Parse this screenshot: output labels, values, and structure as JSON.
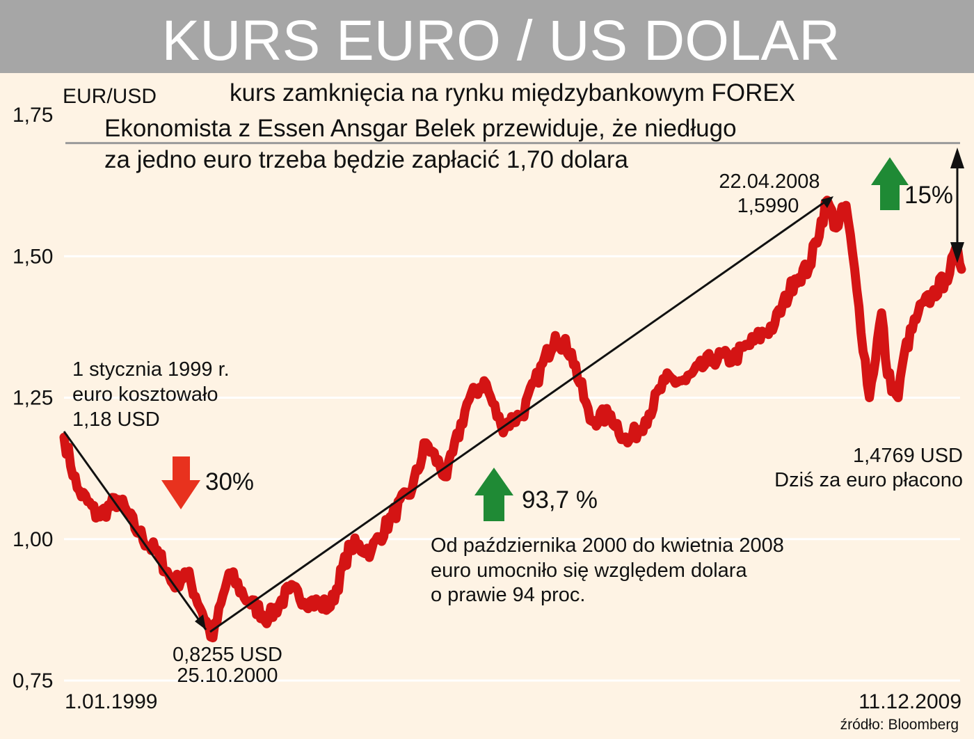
{
  "chart_data": {
    "type": "line",
    "title": "KURS EURO / US DOLAR",
    "ylabel": "EUR/USD",
    "subtitle": "kurs zamknięcia na rynku międzybankowym FOREX",
    "ylim": [
      0.75,
      1.75
    ],
    "y_ticks": [
      "1,75",
      "1,50",
      "1,25",
      "1,00",
      "0,75"
    ],
    "y_tick_values": [
      1.75,
      1.5,
      1.25,
      1.0,
      0.75
    ],
    "x_labels": {
      "start": "1.01.1999",
      "end": "11.12.2009"
    },
    "x_range": [
      "1999-01-01",
      "2009-12-11"
    ],
    "grid": true,
    "target_level": 1.7,
    "series": [
      {
        "color": "#d41414",
        "x": [
          "1999-01-01",
          "1999-03-01",
          "1999-06-01",
          "1999-09-01",
          "1999-12-01",
          "2000-03-01",
          "2000-05-01",
          "2000-07-01",
          "2000-10-25",
          "2001-01-05",
          "2001-04-01",
          "2001-07-01",
          "2001-10-01",
          "2002-01-01",
          "2002-04-01",
          "2002-07-01",
          "2002-10-01",
          "2003-01-01",
          "2003-04-01",
          "2003-06-01",
          "2003-09-01",
          "2003-12-01",
          "2004-02-15",
          "2004-05-01",
          "2004-08-01",
          "2004-12-28",
          "2005-03-10",
          "2005-06-01",
          "2005-09-01",
          "2005-11-15",
          "2006-02-01",
          "2006-05-01",
          "2006-08-01",
          "2006-12-01",
          "2007-03-01",
          "2007-06-01",
          "2007-09-01",
          "2007-12-01",
          "2008-02-01",
          "2008-04-22",
          "2008-06-01",
          "2008-07-15",
          "2008-09-01",
          "2008-10-27",
          "2008-12-20",
          "2009-01-15",
          "2009-03-04",
          "2009-04-01",
          "2009-06-01",
          "2009-08-01",
          "2009-10-01",
          "2009-11-25",
          "2009-12-11"
        ],
        "values": [
          1.18,
          1.09,
          1.04,
          1.07,
          1.01,
          0.97,
          0.92,
          0.94,
          0.8255,
          0.94,
          0.89,
          0.86,
          0.91,
          0.89,
          0.88,
          0.99,
          0.98,
          1.04,
          1.09,
          1.17,
          1.11,
          1.24,
          1.28,
          1.2,
          1.22,
          1.36,
          1.33,
          1.21,
          1.22,
          1.17,
          1.21,
          1.28,
          1.28,
          1.32,
          1.32,
          1.35,
          1.38,
          1.46,
          1.48,
          1.599,
          1.55,
          1.59,
          1.44,
          1.25,
          1.4,
          1.29,
          1.25,
          1.33,
          1.4,
          1.43,
          1.46,
          1.51,
          1.4769
        ]
      }
    ],
    "annotations": {
      "start_text": [
        "1 stycznia 1999 r.",
        "euro kosztowało",
        "1,18 USD"
      ],
      "low_text": [
        "0,8255 USD",
        "25.10.2000"
      ],
      "peak_text": [
        "22.04.2008",
        "1,5990"
      ],
      "today_text": [
        "1,4769 USD",
        "Dziś za euro płacono"
      ],
      "drop_pct": "30%",
      "rise_pct": "93,7 %",
      "gap_pct": "15%",
      "rise_text": [
        "Od października 2000 do kwietnia 2008",
        "euro umocniło się względem dolara",
        "o prawie 94 proc."
      ],
      "forecast_text": [
        "Ekonomista z Essen Ansgar Belek przewiduje, że niedługo",
        "za jedno euro trzeba będzie zapłacić 1,70 dolara"
      ]
    },
    "source": "źródło: Bloomberg"
  },
  "colors": {
    "background": "#fef3e4",
    "header": "#a6a6a6",
    "line": "#d41414",
    "arrow_down": "#e8321e",
    "arrow_up": "#1f8a35"
  }
}
